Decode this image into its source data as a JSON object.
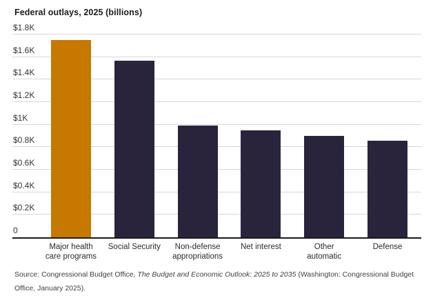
{
  "chart_data": {
    "type": "bar",
    "title": "Federal outlays, 2025 (billions)",
    "categories": [
      "Major health\ncare programs",
      "Social Security",
      "Non-defense\nappropriations",
      "Net interest",
      "Other\nautomatic",
      "Defense"
    ],
    "values": [
      1750,
      1565,
      990,
      950,
      900,
      855
    ],
    "values_unit": "billions of dollars",
    "xlabel": "",
    "ylabel": "",
    "ylim": [
      0,
      1800
    ],
    "ytick_step": 200,
    "ytick_labels": [
      "0",
      "$0.2K",
      "$0.4K",
      "$0.6K",
      "$0.8K",
      "$1K",
      "$1.2K",
      "$1.4K",
      "$1.6K",
      "$1.8K"
    ],
    "grid": true,
    "legend": false,
    "bar_colors": [
      "#c67800",
      "#29243c",
      "#29243c",
      "#29243c",
      "#29243c",
      "#29243c"
    ]
  },
  "colors": {
    "highlight_bar": "#c67800",
    "default_bar": "#29243c",
    "gridline": "#d6d6d6",
    "axis": "#1a1a1a",
    "background": "#ffffff"
  },
  "source": {
    "prefix": "Source: Congressional Budget Office, ",
    "italic": "The Budget and Economic Outlook: 2025 to 2035",
    "suffix": " (Washington: Congressional Budget Office, January 2025)."
  }
}
